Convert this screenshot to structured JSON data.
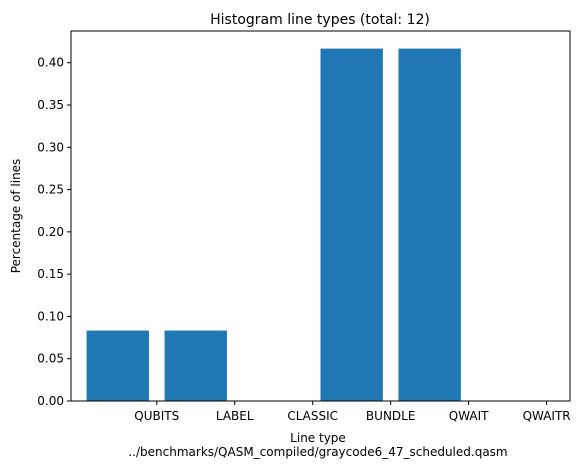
{
  "chart_data": {
    "type": "bar",
    "title": "Histogram line types (total: 12)",
    "xlabel": "Line type",
    "xlabel_secondary": "../benchmarks/QASM_compiled/graycode6_47_scheduled.qasm",
    "ylabel": "Percentage of lines",
    "categories": [
      "QUBITS",
      "LABEL",
      "CLASSIC",
      "BUNDLE",
      "QWAIT",
      "QWAITR"
    ],
    "values": [
      0.0833,
      0.0833,
      0.0,
      0.4167,
      0.4167,
      0.0
    ],
    "yticks": [
      "0.00",
      "0.05",
      "0.10",
      "0.15",
      "0.20",
      "0.25",
      "0.30",
      "0.35",
      "0.40"
    ],
    "ylim": [
      0,
      0.4375
    ],
    "bar_color": "#1f77b4",
    "grid": false,
    "legend": "none"
  }
}
